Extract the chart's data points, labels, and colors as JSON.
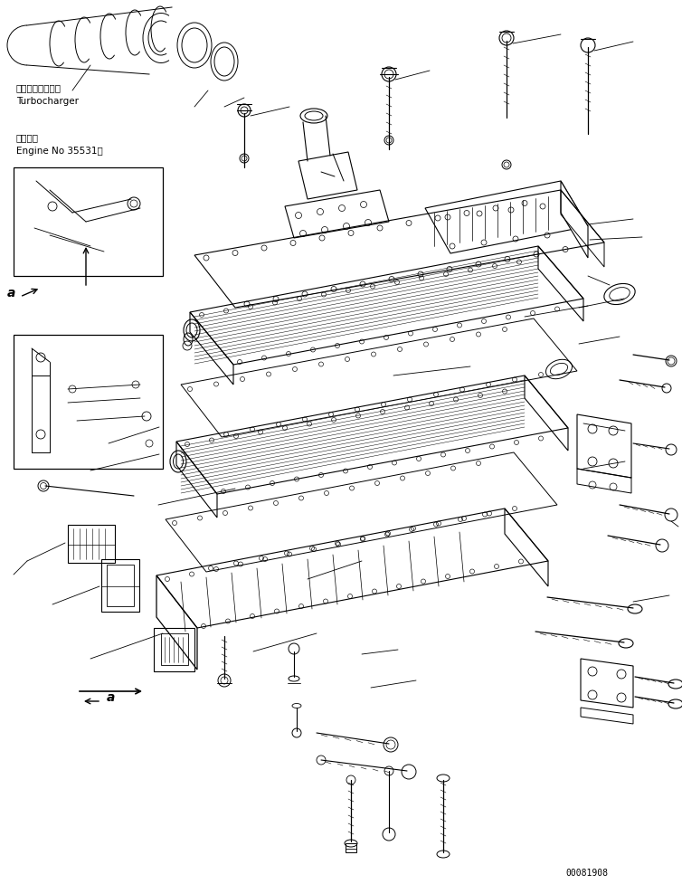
{
  "bg_color": "#ffffff",
  "fig_width": 7.54,
  "fig_height": 9.77,
  "dpi": 100,
  "doc_number": "00081908",
  "label_turbo_jp": "ターボチャージャ",
  "label_turbo_en": "Turbocharger",
  "label_engine_jp": "適用号機",
  "label_engine_en": "Engine No 35531～",
  "label_a": "a"
}
